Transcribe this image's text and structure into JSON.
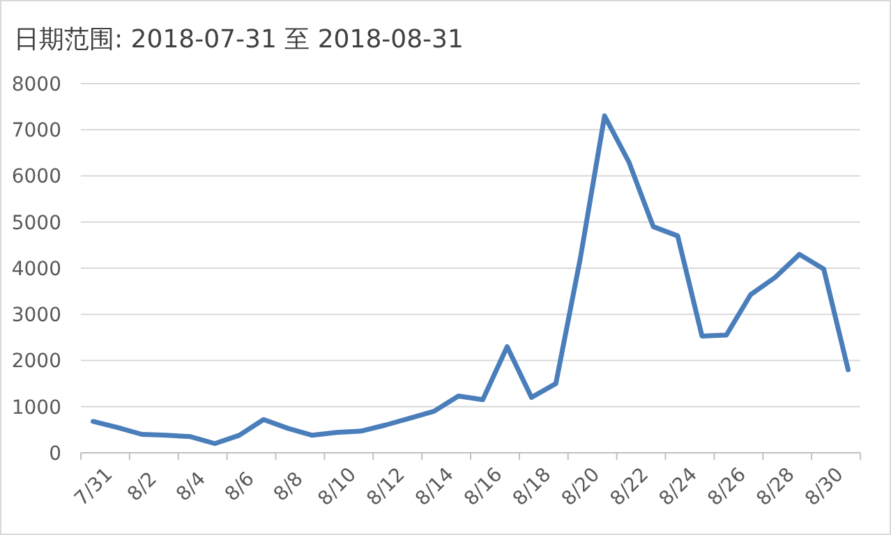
{
  "chart_data": {
    "type": "line",
    "title": "日期范围: 2018-07-31 至 2018-08-31",
    "categories": [
      "7/31",
      null,
      "8/2",
      null,
      "8/4",
      null,
      "8/6",
      null,
      "8/8",
      null,
      "8/10",
      null,
      "8/12",
      null,
      "8/14",
      null,
      "8/16",
      null,
      "8/18",
      null,
      "8/20",
      null,
      "8/22",
      null,
      "8/24",
      null,
      "8/26",
      null,
      "8/28",
      null,
      "8/30",
      null
    ],
    "series": [
      {
        "color": "#4a7ebb",
        "values": [
          680,
          550,
          400,
          380,
          350,
          200,
          380,
          720,
          530,
          380,
          440,
          470,
          600,
          750,
          900,
          1230,
          1150,
          2300,
          1200,
          1500,
          4200,
          7300,
          6300,
          4900,
          4700,
          2530,
          2550,
          3430,
          3800,
          4300,
          3980,
          1800
        ]
      }
    ],
    "ylim": [
      0,
      8000
    ],
    "yticks": [
      0,
      1000,
      2000,
      3000,
      4000,
      5000,
      6000,
      7000,
      8000
    ],
    "grid": "y",
    "marker": "none",
    "line_style": "solid"
  }
}
